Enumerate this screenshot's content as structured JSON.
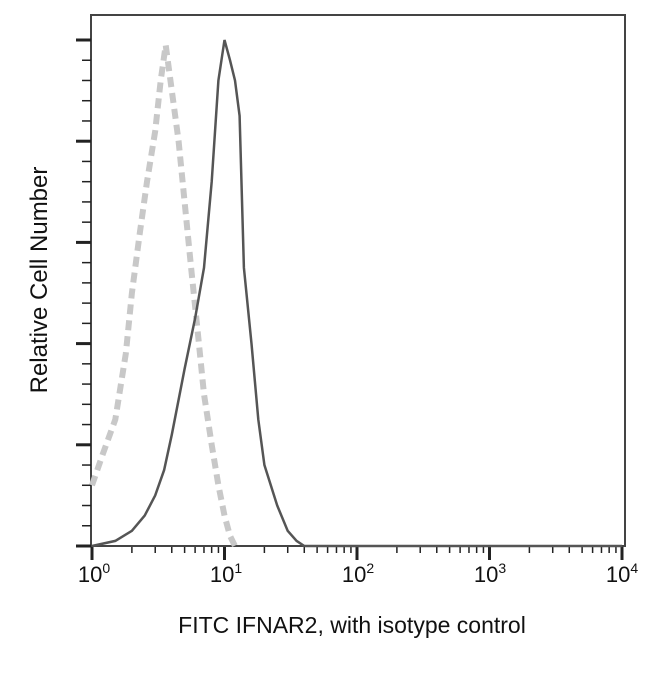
{
  "chart_data": {
    "type": "line",
    "title": "",
    "xlabel": "FITC IFNAR2, with isotype control",
    "ylabel": "Relative Cell Number",
    "x_scale": "log",
    "xlim": [
      1,
      10000
    ],
    "x_ticks": [
      {
        "base": "10",
        "exp": "0",
        "value": 1
      },
      {
        "base": "10",
        "exp": "1",
        "value": 10
      },
      {
        "base": "10",
        "exp": "2",
        "value": 100
      },
      {
        "base": "10",
        "exp": "3",
        "value": 1000
      },
      {
        "base": "10",
        "exp": "4",
        "value": 10000
      }
    ],
    "ylim": [
      0,
      100
    ],
    "y_tick_labels": "none",
    "grid": false,
    "legend": "none",
    "series": [
      {
        "name": "Isotype control",
        "style": "dashed",
        "color": "#c8c8c8",
        "x": [
          1.0,
          1.2,
          1.5,
          1.8,
          2.0,
          2.3,
          2.6,
          3.0,
          3.3,
          3.6,
          4.0,
          4.5,
          5.0,
          5.6,
          6.3,
          7.0,
          8.0,
          9.0,
          10.0,
          11.0,
          12.0
        ],
        "y": [
          12,
          18,
          25,
          38,
          50,
          62,
          72,
          82,
          92,
          99,
          90,
          80,
          68,
          55,
          42,
          30,
          20,
          12,
          6,
          2,
          0
        ]
      },
      {
        "name": "FITC IFNAR2",
        "style": "solid",
        "color": "#555555",
        "x": [
          1.0,
          1.5,
          2.0,
          2.5,
          3.0,
          3.5,
          4.0,
          5.0,
          6.0,
          7.0,
          8.0,
          9.0,
          10.0,
          11.0,
          12.0,
          13.0,
          14.0,
          16.0,
          18.0,
          20.0,
          25.0,
          30.0,
          35.0,
          40.0,
          100.0,
          10000.0
        ],
        "y": [
          0,
          1,
          3,
          6,
          10,
          15,
          22,
          35,
          45,
          55,
          72,
          92,
          100,
          96,
          92,
          85,
          55,
          40,
          25,
          16,
          8,
          3,
          1,
          0,
          0,
          0
        ]
      }
    ]
  }
}
